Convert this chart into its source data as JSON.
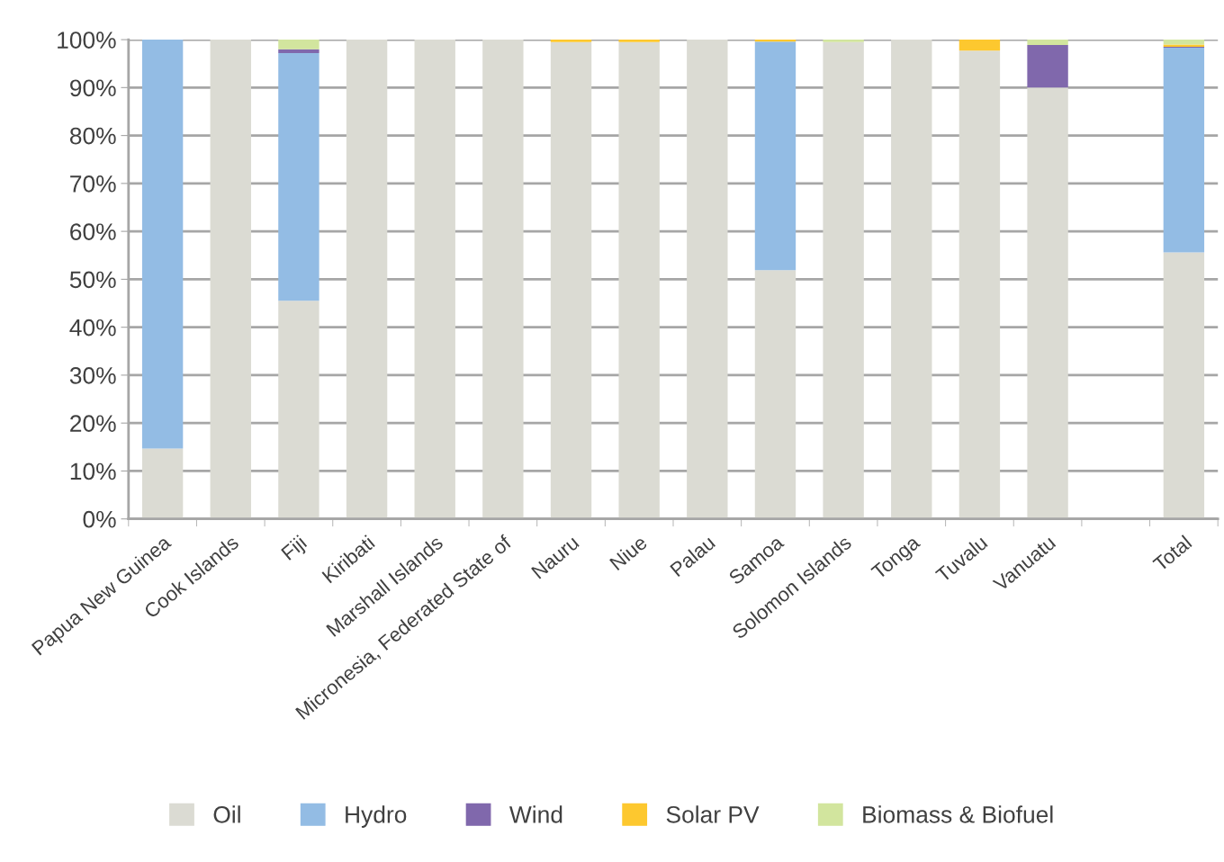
{
  "chart_data": {
    "type": "bar",
    "stacked": true,
    "categories": [
      "Papua New Guinea",
      "Cook Islands",
      "Fiji",
      "Kiribati",
      "Marshall Islands",
      "Micronesia, Federated State of",
      "Nauru",
      "Niue",
      "Palau",
      "Samoa",
      "Solomon Islands",
      "Tonga",
      "Tuvalu",
      "Vanuatu",
      null,
      "Total"
    ],
    "series": [
      {
        "name": "Oil",
        "color": "#dbdbd3",
        "values": [
          14.7,
          100,
          45.5,
          100,
          100,
          100,
          99.5,
          99.5,
          100,
          51.9,
          99.5,
          100,
          97.7,
          90.0,
          null,
          55.6
        ]
      },
      {
        "name": "Hydro",
        "color": "#93bce4",
        "values": [
          85.3,
          0,
          51.7,
          0,
          0,
          0,
          0,
          0,
          0,
          47.7,
          0,
          0,
          0,
          0,
          null,
          42.7
        ]
      },
      {
        "name": "Wind",
        "color": "#8068ac",
        "values": [
          0,
          0,
          0.8,
          0,
          0,
          0,
          0,
          0,
          0,
          0,
          0,
          0,
          0,
          8.9,
          null,
          0.2
        ]
      },
      {
        "name": "Solar PV",
        "color": "#fdc82f",
        "values": [
          0,
          0,
          0,
          0,
          0,
          0,
          0.5,
          0.5,
          0,
          0.4,
          0,
          0,
          2.3,
          0,
          null,
          0.5
        ]
      },
      {
        "name": "Biomass & Biofuel",
        "color": "#d2e59e",
        "values": [
          0,
          0,
          2.0,
          0,
          0,
          0,
          0,
          0,
          0,
          0,
          0.5,
          0,
          0,
          1.1,
          null,
          1.0
        ]
      }
    ],
    "ylim": [
      0,
      100
    ],
    "yticks": [
      {
        "value": 0,
        "label": "0%"
      },
      {
        "value": 10,
        "label": "10%"
      },
      {
        "value": 20,
        "label": "20%"
      },
      {
        "value": 30,
        "label": "30%"
      },
      {
        "value": 40,
        "label": "40%"
      },
      {
        "value": 50,
        "label": "50%"
      },
      {
        "value": 60,
        "label": "60%"
      },
      {
        "value": 70,
        "label": "70%"
      },
      {
        "value": 80,
        "label": "80%"
      },
      {
        "value": 90,
        "label": "90%"
      },
      {
        "value": 100,
        "label": "100%"
      }
    ],
    "grid": "y",
    "legend": "bottom"
  }
}
